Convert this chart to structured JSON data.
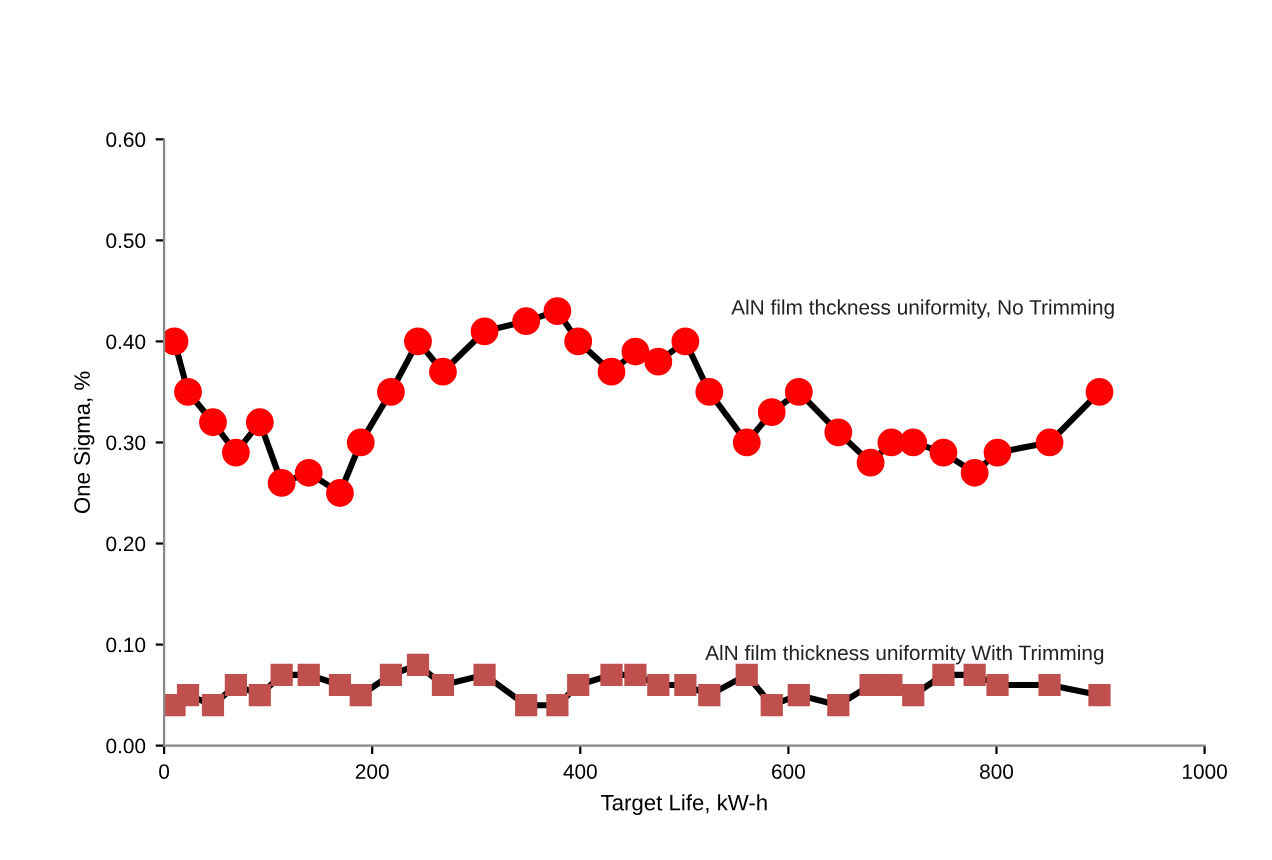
{
  "chart_data": {
    "type": "line",
    "xlabel": "Target Life, kW-h",
    "ylabel": "One Sigma, %",
    "x": [
      10,
      23,
      47,
      69,
      92,
      113,
      139,
      169,
      189,
      218,
      244,
      268,
      308,
      348,
      378,
      398,
      430,
      453,
      475,
      501,
      524,
      560,
      584,
      610,
      648,
      679,
      699,
      720,
      749,
      779,
      801,
      851,
      899
    ],
    "xlim": [
      0,
      1000
    ],
    "xticks": [
      0,
      200,
      400,
      600,
      800,
      1000
    ],
    "ylim": [
      0,
      0.6
    ],
    "yticks": [
      {
        "value": 0,
        "label": "0.00"
      },
      {
        "value": 0.1,
        "label": "0.10"
      },
      {
        "value": 0.2,
        "label": "0.20"
      },
      {
        "value": 0.3,
        "label": "0.30"
      },
      {
        "value": 0.4,
        "label": "0.40"
      },
      {
        "value": 0.5,
        "label": "0.50"
      },
      {
        "value": 0.6,
        "label": "0.60"
      }
    ],
    "grid": false,
    "legend": false,
    "line_style": "solid",
    "series": [
      {
        "name": "AlN film thckness uniformity, No Trimming",
        "color": "#ff0000",
        "marker": "circle",
        "values": [
          0.4,
          0.35,
          0.32,
          0.29,
          0.32,
          0.26,
          0.27,
          0.25,
          0.3,
          0.35,
          0.4,
          0.37,
          0.41,
          0.42,
          0.43,
          0.4,
          0.37,
          0.39,
          0.38,
          0.4,
          0.35,
          0.3,
          0.33,
          0.35,
          0.31,
          0.28,
          0.3,
          0.3,
          0.29,
          0.27,
          0.29,
          0.3,
          0.35
        ]
      },
      {
        "name": "AlN film thickness uniformity With Trimming",
        "color": "#c0504d",
        "marker": "square",
        "values": [
          0.04,
          0.05,
          0.04,
          0.06,
          0.05,
          0.07,
          0.07,
          0.06,
          0.05,
          0.07,
          0.08,
          0.06,
          0.07,
          0.04,
          0.04,
          0.06,
          0.07,
          0.07,
          0.06,
          0.06,
          0.05,
          0.07,
          0.04,
          0.05,
          0.04,
          0.06,
          0.06,
          0.05,
          0.07,
          0.07,
          0.06,
          0.06,
          0.05
        ]
      }
    ]
  }
}
